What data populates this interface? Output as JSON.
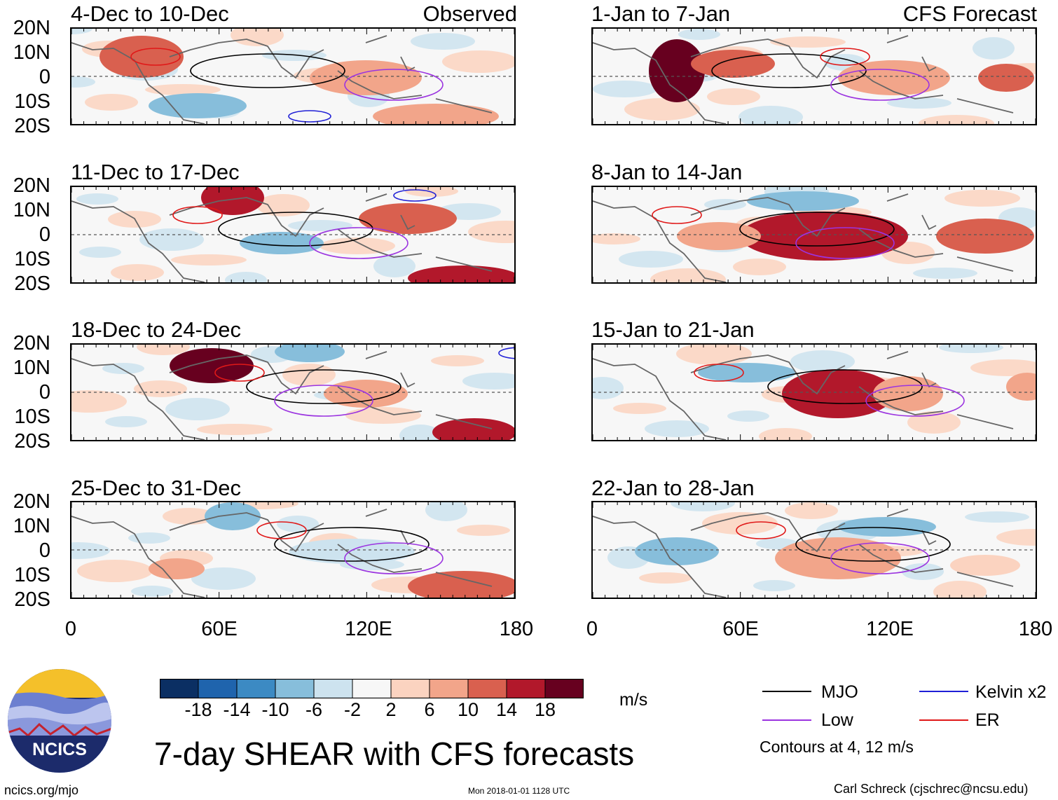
{
  "left_header": "Observed",
  "right_header": "CFS Forecast",
  "left_panels": [
    "4-Dec to 10-Dec",
    "11-Dec to 17-Dec",
    "18-Dec to 24-Dec",
    "25-Dec to 31-Dec"
  ],
  "right_panels": [
    "1-Jan to 7-Jan",
    "8-Jan to 14-Jan",
    "15-Jan to 21-Jan",
    "22-Jan to 28-Jan"
  ],
  "lat_labels": [
    "20N",
    "10N",
    "0",
    "10S",
    "20S"
  ],
  "lon_labels": [
    "0",
    "60E",
    "120E",
    "180"
  ],
  "colorbar": {
    "labels": [
      "-18",
      "-14",
      "-10",
      "-6",
      "-2",
      "2",
      "6",
      "10",
      "14",
      "18"
    ],
    "colors": [
      "#0b2f63",
      "#1f64ad",
      "#3c8ac3",
      "#87bedb",
      "#cde3ef",
      "#f7f7f7",
      "#fbd3c0",
      "#f2a58a",
      "#d9604f",
      "#b2182b",
      "#67001f"
    ],
    "units": "m/s"
  },
  "legend": {
    "items": [
      {
        "label": "MJO",
        "color": "#000000"
      },
      {
        "label": "Kelvin x2",
        "color": "#1f1fd6"
      },
      {
        "label": "Low",
        "color": "#9b34e0"
      },
      {
        "label": "ER",
        "color": "#e01818"
      }
    ],
    "contours": "Contours at 4, 12 m/s"
  },
  "main_title": "7-day SHEAR with CFS forecasts",
  "logo_text": "NCICS",
  "site": "ncics.org/mjo",
  "timestamp": "Mon 2018-01-01 1128 UTC",
  "author": "Carl Schreck (cjschrec@ncsu.edu)"
}
